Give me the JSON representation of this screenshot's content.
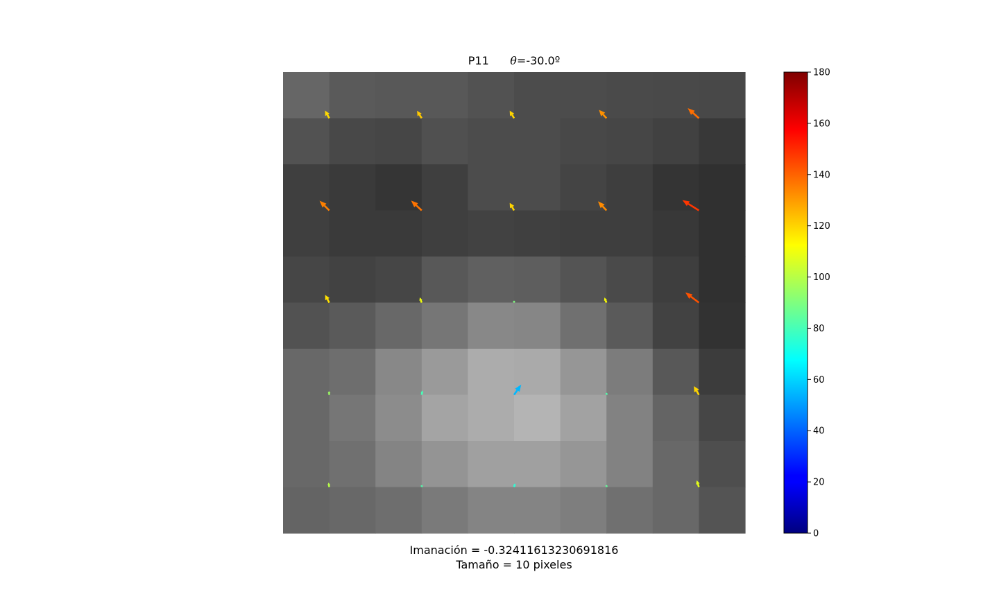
{
  "chart_data": {
    "type": "heatmap",
    "title_label": "P11",
    "title_angle_symbol": "θ",
    "title_angle_value": "=-30.0º",
    "captions": [
      "Imanación = -0.32411613230691816",
      "Tamaño = 10 pixeles"
    ],
    "grid_size": 10,
    "gray_levels": [
      [
        102,
        90,
        88,
        88,
        82,
        76,
        76,
        74,
        73,
        72
      ],
      [
        82,
        72,
        70,
        80,
        76,
        76,
        72,
        70,
        65,
        56
      ],
      [
        63,
        58,
        53,
        63,
        76,
        76,
        68,
        62,
        52,
        48
      ],
      [
        63,
        58,
        58,
        63,
        66,
        64,
        62,
        62,
        56,
        48
      ],
      [
        70,
        66,
        70,
        88,
        96,
        94,
        84,
        74,
        62,
        48
      ],
      [
        82,
        90,
        104,
        118,
        136,
        134,
        112,
        90,
        66,
        50
      ],
      [
        104,
        110,
        136,
        154,
        172,
        170,
        150,
        124,
        88,
        60
      ],
      [
        104,
        118,
        140,
        164,
        172,
        180,
        162,
        130,
        100,
        70
      ],
      [
        104,
        112,
        132,
        148,
        160,
        160,
        150,
        130,
        104,
        78
      ],
      [
        100,
        104,
        110,
        122,
        132,
        132,
        126,
        112,
        104,
        84
      ]
    ],
    "vectors": {
      "columns": [
        1,
        3,
        5,
        7,
        9
      ],
      "rows": [
        1,
        3,
        5,
        7,
        9
      ],
      "angle_deg": [
        [
          119,
          122,
          120,
          132,
          138
        ],
        [
          135,
          137,
          120,
          133,
          148
        ],
        [
          118,
          110,
          90,
          112,
          143
        ],
        [
          95,
          80,
          55,
          82,
          120
        ],
        [
          100,
          82,
          75,
          85,
          108
        ]
      ],
      "magnitude": [
        [
          0.35,
          0.35,
          0.35,
          0.45,
          0.6
        ],
        [
          0.55,
          0.58,
          0.35,
          0.5,
          0.78
        ],
        [
          0.35,
          0.22,
          0.06,
          0.22,
          0.68
        ],
        [
          0.15,
          0.18,
          0.5,
          0.06,
          0.4
        ],
        [
          0.18,
          0.06,
          0.15,
          0.06,
          0.28
        ]
      ]
    },
    "colorbar": {
      "colormap": "jet",
      "range": [
        0,
        180
      ],
      "ticks": [
        0,
        20,
        40,
        60,
        80,
        100,
        120,
        140,
        160,
        180
      ]
    }
  }
}
